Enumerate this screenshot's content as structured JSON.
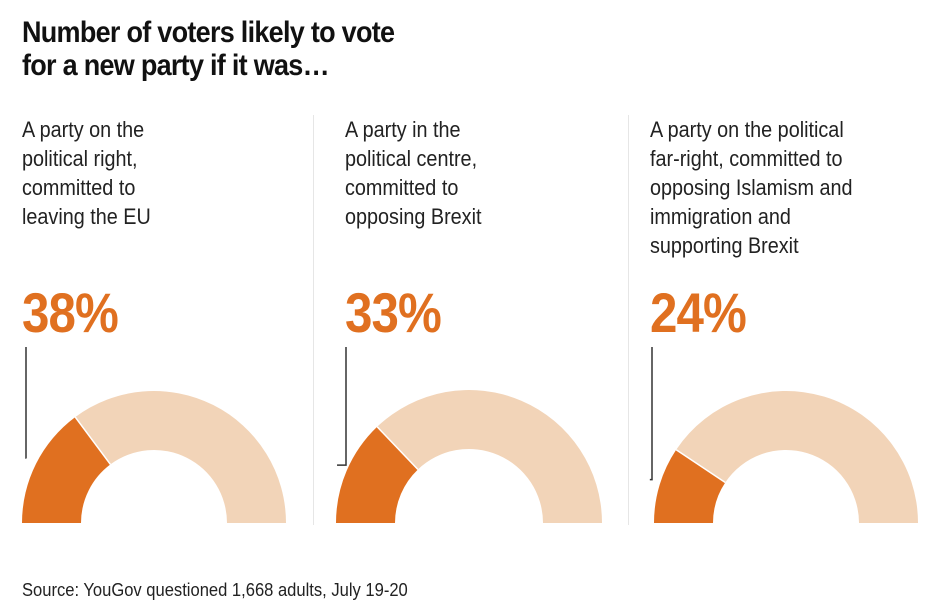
{
  "title_lines": [
    "Number of voters likely to vote",
    "for a new party if it was…"
  ],
  "source": "Source: YouGov questioned 1,668 adults, July 19-20",
  "colors": {
    "accent": "#e07020",
    "remainder": "#f2d4b8",
    "leader": "#333333"
  },
  "chart_data": {
    "type": "pie",
    "variant": "semi-donut gauge",
    "title": "Number of voters likely to vote for a new party if it was…",
    "categories": [
      "A party on the political right, committed to leaving the EU",
      "A party in the political centre, committed to opposing Brexit",
      "A party on the political far-right, committed to opposing Islamism and immigration and supporting Brexit"
    ],
    "values": [
      38,
      33,
      24
    ],
    "unit": "%",
    "max": 100,
    "source": "YouGov questioned 1,668 adults, July 19-20"
  },
  "panels": [
    {
      "desc_lines": [
        "A party on the",
        "political right,",
        "committed to",
        "leaving the EU"
      ],
      "value_label": "38%",
      "value": 38
    },
    {
      "desc_lines": [
        "A party in the",
        "political centre,",
        "committed to",
        "opposing Brexit"
      ],
      "value_label": "33%",
      "value": 33
    },
    {
      "desc_lines": [
        "A party on the political",
        "far-right, committed to",
        "opposing Islamism and",
        "immigration and",
        "supporting Brexit"
      ],
      "value_label": "24%",
      "value": 24
    }
  ]
}
